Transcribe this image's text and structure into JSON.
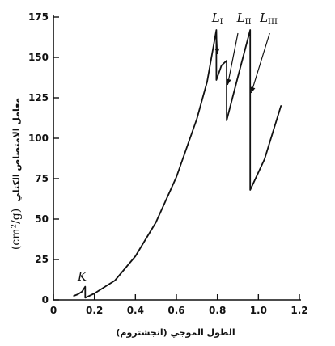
{
  "chart_data": {
    "type": "line",
    "title": "",
    "xlabel": "الطول الموجي (انجشتروم)",
    "ylabel_text": "معامل الامتصاص الكتلي",
    "ylabel_unit": "(cm²/g)",
    "xlim": [
      0,
      1.2
    ],
    "ylim": [
      0,
      175
    ],
    "x_ticks": [
      "0",
      "0.2",
      "0.4",
      "0.6",
      "0.8",
      "1.0",
      "1.2"
    ],
    "y_ticks": [
      "0",
      "25",
      "50",
      "75",
      "100",
      "125",
      "150",
      "175"
    ],
    "grid": false,
    "series": [
      {
        "segments": [
          [
            [
              0.1,
              2.5
            ],
            [
              0.12,
              3.5
            ],
            [
              0.14,
              5.2
            ],
            [
              0.155,
              8.2
            ]
          ],
          [
            [
              0.155,
              1.3
            ],
            [
              0.2,
              4
            ],
            [
              0.3,
              12
            ],
            [
              0.4,
              27
            ],
            [
              0.5,
              48
            ],
            [
              0.6,
              76
            ],
            [
              0.7,
              112
            ],
            [
              0.75,
              135
            ],
            [
              0.795,
              167
            ]
          ],
          [
            [
              0.795,
              136
            ],
            [
              0.82,
              145
            ],
            [
              0.845,
              148
            ]
          ],
          [
            [
              0.845,
              111
            ],
            [
              0.9,
              138
            ],
            [
              0.96,
              167
            ]
          ],
          [
            [
              0.96,
              68
            ],
            [
              1.03,
              87
            ],
            [
              1.11,
              120
            ]
          ]
        ]
      }
    ],
    "annotations": [
      {
        "text": "K",
        "sub": "",
        "x": 0.14,
        "y": 12
      },
      {
        "text": "L",
        "sub": "I",
        "x": 0.8,
        "y": 172
      },
      {
        "text": "L",
        "sub": "II",
        "x": 0.93,
        "y": 172
      },
      {
        "text": "L",
        "sub": "III",
        "x": 1.05,
        "y": 172
      }
    ]
  }
}
